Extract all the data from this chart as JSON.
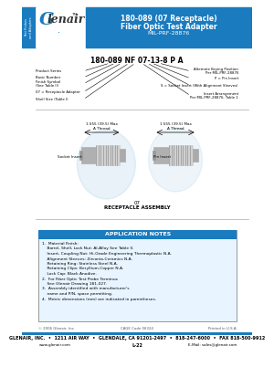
{
  "title_line1": "180-089 (07 Receptacle)",
  "title_line2": "Fiber Optic Test Adapter",
  "title_line3": "MIL-PRF-28876",
  "header_bg": "#1a7bbf",
  "header_text_color": "#ffffff",
  "logo_text": "Glenair.",
  "logo_bg": "#ffffff",
  "sidebar_bg": "#1a7bbf",
  "sidebar_text": "Test Probes\nand Adapters",
  "part_number_label": "180-089 NF 07-13-8 P A",
  "pn_labels_left": [
    "Product Series",
    "Basic Number",
    "Finish Symbol\n(See Table II)",
    "07 = Receptacle Adapter",
    "Shell Size (Table I)"
  ],
  "pn_labels_right": [
    "Alternate Keying Position\nPer MIL-PRF-28876",
    "P = Pin Insert",
    "S = Socket Insert (With Alignment Sleeves)",
    "Insert Arrangement\nPer MIL-PRF-28876, Table 1"
  ],
  "drawing_title": "RECEPTACLE ASSEMBLY",
  "dim_left": "1.555 (39.5) Max\nA Thread",
  "dim_right": "1.555 (39.5) Max\nA Thread",
  "label_socket": "Socket Insert",
  "label_pin": "Pin Insert",
  "app_notes_title": "APPLICATION NOTES",
  "app_notes_bg": "#1a7bbf",
  "app_notes_box_bg": "#ddeeff",
  "app_notes": [
    "1.  Material Finish:\n    Barrel, Shell, Lock Nut: Al-Alloy See Table II.\n    Insert, Coupling Nut: Hi-Grade Engineering Thermoplastic N.A.\n    Alignment Sleeves: Zirconia-Ceramics N.A.\n    Retaining Ring: Stainless Steel N.A.\n    Retaining Clips: Beryllium-Copper N.A.\n    Lock Cap: Black Anodize.",
    "2.  For Fiber Optic Test Probe Terminus\n    See Glenair Drawing 181-027.",
    "3.  Assembly identified with manufacturer's\n    name and P/N, space permitting.",
    "4.  Metric dimensions (mm) are indicated in parentheses."
  ],
  "footer_line1": "GLENAIR, INC.  •  1211 AIR WAY  •  GLENDALE, CA 91201-2497  •  818-247-6000  •  FAX 818-500-9912",
  "footer_line2": "www.glenair.com",
  "footer_line3": "L-22",
  "footer_line4": "E-Mail: sales@glenair.com",
  "footer_copy": "© 2006 Glenair, Inc.",
  "footer_cage": "CAGE Code 06324",
  "footer_printed": "Printed in U.S.A.",
  "footer_bar_color": "#1a7bbf",
  "bg_color": "#ffffff"
}
